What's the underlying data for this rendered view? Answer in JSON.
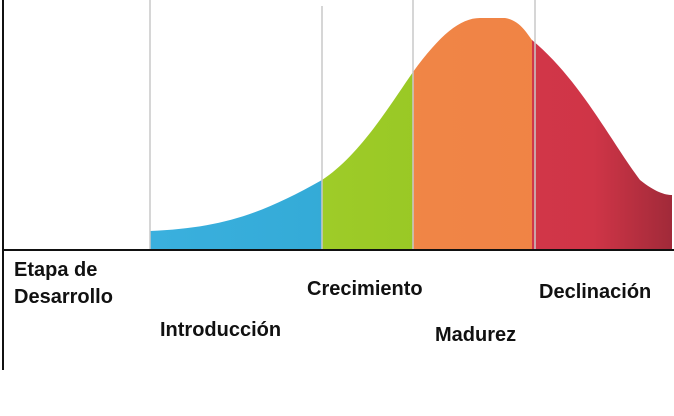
{
  "stages": [
    {
      "label": "Etapa de Desarrollo"
    },
    {
      "label": "Introducción"
    },
    {
      "label": "Crecimiento"
    },
    {
      "label": "Madurez"
    },
    {
      "label": "Declinación"
    }
  ]
}
